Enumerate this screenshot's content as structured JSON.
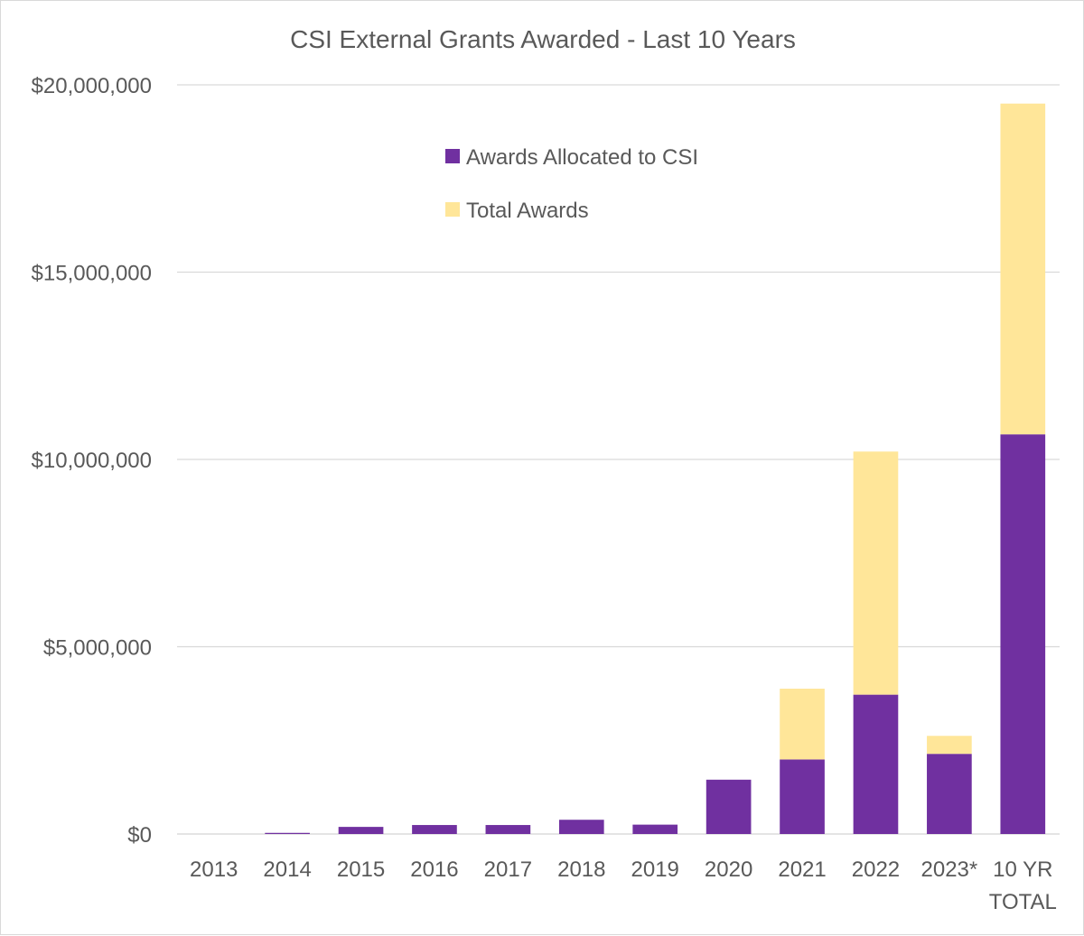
{
  "chart_data": {
    "type": "bar",
    "stacked": true,
    "title": "CSI External Grants Awarded - Last 10 Years",
    "xlabel": "",
    "ylabel": "",
    "ylim": [
      0,
      20000000
    ],
    "yticks": [
      0,
      5000000,
      10000000,
      15000000,
      20000000
    ],
    "ytick_labels": [
      "$0",
      "$5,000,000",
      "$10,000,000",
      "$15,000,000",
      "$20,000,000"
    ],
    "grid": true,
    "legend_position": "top-center",
    "categories": [
      "2013",
      "2014",
      "2015",
      "2016",
      "2017",
      "2018",
      "2019",
      "2020",
      "2021",
      "2022",
      "2023*",
      "10 YR TOTAL"
    ],
    "category_lines": [
      [
        "2013"
      ],
      [
        "2014"
      ],
      [
        "2015"
      ],
      [
        "2016"
      ],
      [
        "2017"
      ],
      [
        "2018"
      ],
      [
        "2019"
      ],
      [
        "2020"
      ],
      [
        "2021"
      ],
      [
        "2022"
      ],
      [
        "2023*"
      ],
      [
        "10 YR",
        "TOTAL"
      ]
    ],
    "series": [
      {
        "name": "Awards Allocated to CSI",
        "color": "#7030a0",
        "values": [
          0,
          30000,
          190000,
          240000,
          240000,
          380000,
          250000,
          1450000,
          1990000,
          3720000,
          2140000,
          10670000
        ]
      },
      {
        "name": "Total Awards",
        "color": "#ffe699",
        "values": [
          0,
          0,
          0,
          0,
          0,
          0,
          0,
          0,
          1890000,
          6490000,
          480000,
          8830000
        ]
      }
    ]
  }
}
